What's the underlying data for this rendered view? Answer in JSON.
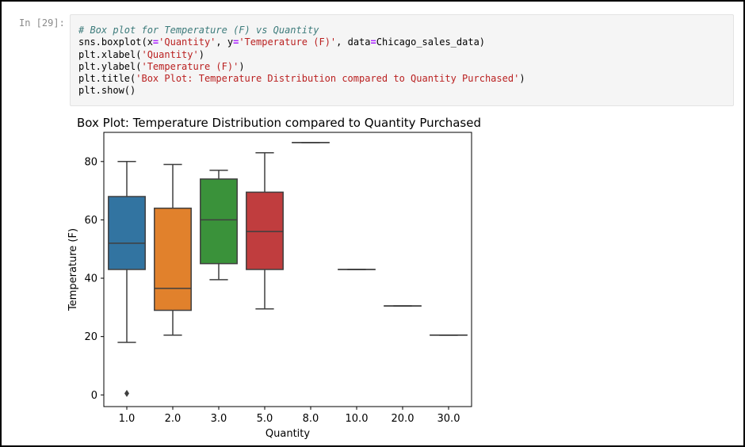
{
  "cell": {
    "prompt": "In [29]:",
    "code_lines": [
      [
        {
          "t": "# Box plot for Temperature (F) vs Quantity",
          "c": "cm"
        }
      ],
      [
        {
          "t": "sns.boxplot(x"
        },
        {
          "t": "=",
          "c": "op"
        },
        {
          "t": "'Quantity'",
          "c": "str"
        },
        {
          "t": ", y"
        },
        {
          "t": "=",
          "c": "op"
        },
        {
          "t": "'Temperature (F)'",
          "c": "str"
        },
        {
          "t": ", data"
        },
        {
          "t": "=",
          "c": "op"
        },
        {
          "t": "Chicago_sales_data)"
        }
      ],
      [
        {
          "t": "plt.xlabel("
        },
        {
          "t": "'Quantity'",
          "c": "str"
        },
        {
          "t": ")"
        }
      ],
      [
        {
          "t": "plt.ylabel("
        },
        {
          "t": "'Temperature (F)'",
          "c": "str"
        },
        {
          "t": ")"
        }
      ],
      [
        {
          "t": "plt.title("
        },
        {
          "t": "'Box Plot: Temperature Distribution compared to Quantity Purchased'",
          "c": "str"
        },
        {
          "t": ")"
        }
      ],
      [
        {
          "t": "plt.show()"
        }
      ]
    ]
  },
  "chart_data": {
    "type": "box",
    "title": "Box Plot: Temperature Distribution compared to Quantity Purchased",
    "xlabel": "Quantity",
    "ylabel": "Temperature (F)",
    "ylim": [
      -4,
      90
    ],
    "yticks": [
      0,
      20,
      40,
      60,
      80
    ],
    "categories": [
      "1.0",
      "2.0",
      "3.0",
      "5.0",
      "8.0",
      "10.0",
      "20.0",
      "30.0"
    ],
    "boxes": [
      {
        "category": "1.0",
        "whisker_low": 18,
        "q1": 43,
        "median": 52,
        "q3": 68,
        "whisker_high": 80,
        "color": "#3274a1",
        "outliers": [
          0.5
        ]
      },
      {
        "category": "2.0",
        "whisker_low": 20.5,
        "q1": 29,
        "median": 36.5,
        "q3": 64,
        "whisker_high": 79,
        "color": "#e1812c",
        "outliers": []
      },
      {
        "category": "3.0",
        "whisker_low": 39.5,
        "q1": 45,
        "median": 60,
        "q3": 74,
        "whisker_high": 77,
        "color": "#3a923a",
        "outliers": []
      },
      {
        "category": "5.0",
        "whisker_low": 29.5,
        "q1": 43,
        "median": 56,
        "q3": 69.5,
        "whisker_high": 83,
        "color": "#c03d3e",
        "outliers": []
      },
      {
        "category": "8.0",
        "whisker_low": 86.5,
        "q1": 86.5,
        "median": 86.5,
        "q3": 86.5,
        "whisker_high": 86.5,
        "color": "#9372b2",
        "outliers": []
      },
      {
        "category": "10.0",
        "whisker_low": 43,
        "q1": 43,
        "median": 43,
        "q3": 43,
        "whisker_high": 43,
        "color": "#845b53",
        "outliers": []
      },
      {
        "category": "20.0",
        "whisker_low": 30.5,
        "q1": 30.5,
        "median": 30.5,
        "q3": 30.5,
        "whisker_high": 30.5,
        "color": "#d684bd",
        "outliers": []
      },
      {
        "category": "30.0",
        "whisker_low": 20.5,
        "q1": 20.5,
        "median": 20.5,
        "q3": 20.5,
        "whisker_high": 20.5,
        "color": "#7f7f7f",
        "outliers": []
      }
    ],
    "grid": false,
    "line_color": "#3f3f3f"
  }
}
